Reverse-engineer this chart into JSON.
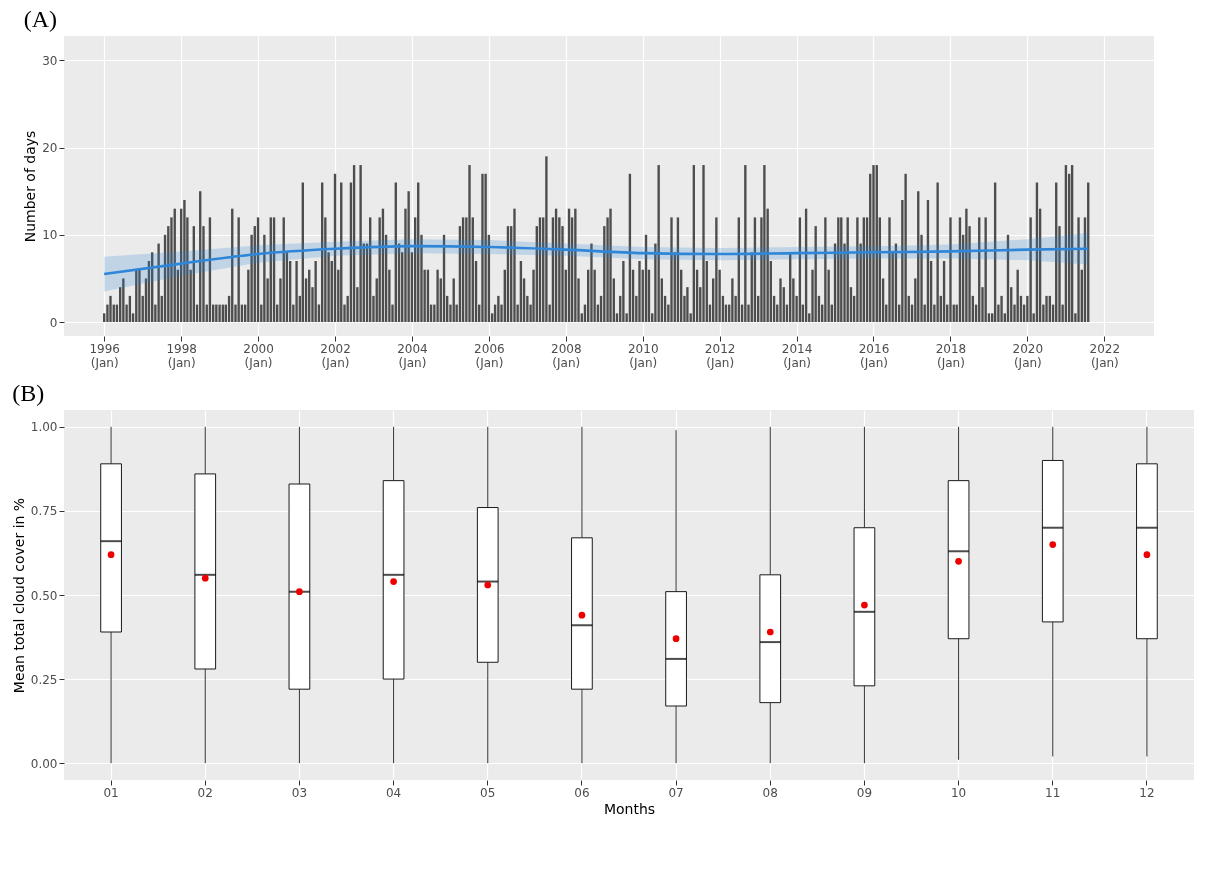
{
  "chart_data": [
    {
      "type": "bar",
      "title": "(A)",
      "ylabel": "Number of days",
      "x": [
        "1996-01",
        "1996-02",
        "1996-03",
        "1996-04",
        "1996-05",
        "1996-06",
        "1996-07",
        "1996-08",
        "1996-09",
        "1996-10",
        "1996-11",
        "1996-12",
        "1997-01",
        "1997-02",
        "1997-03",
        "1997-04",
        "1997-05",
        "1997-06",
        "1997-07",
        "1997-08",
        "1997-09",
        "1997-10",
        "1997-11",
        "1997-12",
        "1998-01",
        "1998-02",
        "1998-03",
        "1998-04",
        "1998-05",
        "1998-06",
        "1998-07",
        "1998-08",
        "1998-09",
        "1998-10",
        "1998-11",
        "1998-12",
        "1999-01",
        "1999-02",
        "1999-03",
        "1999-04",
        "1999-05",
        "1999-06",
        "1999-07",
        "1999-08",
        "1999-09",
        "1999-10",
        "1999-11",
        "1999-12",
        "2000-01",
        "2000-02",
        "2000-03",
        "2000-04",
        "2000-05",
        "2000-06",
        "2000-07",
        "2000-08",
        "2000-09",
        "2000-10",
        "2000-11",
        "2000-12",
        "2001-01",
        "2001-02",
        "2001-03",
        "2001-04",
        "2001-05",
        "2001-06",
        "2001-07",
        "2001-08",
        "2001-09",
        "2001-10",
        "2001-11",
        "2001-12",
        "2002-01",
        "2002-02",
        "2002-03",
        "2002-04",
        "2002-05",
        "2002-06",
        "2002-07",
        "2002-08",
        "2002-09",
        "2002-10",
        "2002-11",
        "2002-12",
        "2003-01",
        "2003-02",
        "2003-03",
        "2003-04",
        "2003-05",
        "2003-06",
        "2003-07",
        "2003-08",
        "2003-09",
        "2003-10",
        "2003-11",
        "2003-12",
        "2004-01",
        "2004-02",
        "2004-03",
        "2004-04",
        "2004-05",
        "2004-06",
        "2004-07",
        "2004-08",
        "2004-09",
        "2004-10",
        "2004-11",
        "2004-12",
        "2005-01",
        "2005-02",
        "2005-03",
        "2005-04",
        "2005-05",
        "2005-06",
        "2005-07",
        "2005-08",
        "2005-09",
        "2005-10",
        "2005-11",
        "2005-12",
        "2006-01",
        "2006-02",
        "2006-03",
        "2006-04",
        "2006-05",
        "2006-06",
        "2006-07",
        "2006-08",
        "2006-09",
        "2006-10",
        "2006-11",
        "2006-12",
        "2007-01",
        "2007-02",
        "2007-03",
        "2007-04",
        "2007-05",
        "2007-06",
        "2007-07",
        "2007-08",
        "2007-09",
        "2007-10",
        "2007-11",
        "2007-12",
        "2008-01",
        "2008-02",
        "2008-03",
        "2008-04",
        "2008-05",
        "2008-06",
        "2008-07",
        "2008-08",
        "2008-09",
        "2008-10",
        "2008-11",
        "2008-12",
        "2009-01",
        "2009-02",
        "2009-03",
        "2009-04",
        "2009-05",
        "2009-06",
        "2009-07",
        "2009-08",
        "2009-09",
        "2009-10",
        "2009-11",
        "2009-12",
        "2010-01",
        "2010-02",
        "2010-03",
        "2010-04",
        "2010-05",
        "2010-06",
        "2010-07",
        "2010-08",
        "2010-09",
        "2010-10",
        "2010-11",
        "2010-12",
        "2011-01",
        "2011-02",
        "2011-03",
        "2011-04",
        "2011-05",
        "2011-06",
        "2011-07",
        "2011-08",
        "2011-09",
        "2011-10",
        "2011-11",
        "2011-12",
        "2012-01",
        "2012-02",
        "2012-03",
        "2012-04",
        "2012-05",
        "2012-06",
        "2012-07",
        "2012-08",
        "2012-09",
        "2012-10",
        "2012-11",
        "2012-12",
        "2013-01",
        "2013-02",
        "2013-03",
        "2013-04",
        "2013-05",
        "2013-06",
        "2013-07",
        "2013-08",
        "2013-09",
        "2013-10",
        "2013-11",
        "2013-12",
        "2014-01",
        "2014-02",
        "2014-03",
        "2014-04",
        "2014-05",
        "2014-06",
        "2014-07",
        "2014-08",
        "2014-09",
        "2014-10",
        "2014-11",
        "2014-12",
        "2015-01",
        "2015-02",
        "2015-03",
        "2015-04",
        "2015-05",
        "2015-06",
        "2015-07",
        "2015-08",
        "2015-09",
        "2015-10",
        "2015-11",
        "2015-12",
        "2016-01",
        "2016-02",
        "2016-03",
        "2016-04",
        "2016-05",
        "2016-06",
        "2016-07",
        "2016-08",
        "2016-09",
        "2016-10",
        "2016-11",
        "2016-12",
        "2017-01",
        "2017-02",
        "2017-03",
        "2017-04",
        "2017-05",
        "2017-06",
        "2017-07",
        "2017-08",
        "2017-09",
        "2017-10",
        "2017-11",
        "2017-12",
        "2018-01",
        "2018-02",
        "2018-03",
        "2018-04",
        "2018-05",
        "2018-06",
        "2018-07",
        "2018-08",
        "2018-09",
        "2018-10",
        "2018-11",
        "2018-12",
        "2019-01",
        "2019-02",
        "2019-03",
        "2019-04",
        "2019-05",
        "2019-06",
        "2019-07",
        "2019-08",
        "2019-09",
        "2019-10",
        "2019-11",
        "2019-12",
        "2020-01",
        "2020-02",
        "2020-03",
        "2020-04",
        "2020-05",
        "2020-06",
        "2020-07",
        "2020-08",
        "2020-09",
        "2020-10",
        "2020-11",
        "2020-12",
        "2021-01",
        "2021-02",
        "2021-03",
        "2021-04",
        "2021-05",
        "2021-06",
        "2021-07",
        "2021-08"
      ],
      "series": [
        {
          "type": "bar",
          "color": "#4d4d4d",
          "values": [
            1,
            2,
            3,
            2,
            2,
            4,
            5,
            2,
            3,
            1,
            6,
            6,
            3,
            5,
            7,
            8,
            2,
            9,
            3,
            10,
            11,
            12,
            13,
            6,
            13,
            14,
            12,
            6,
            11,
            2,
            15,
            11,
            2,
            12,
            2,
            2,
            2,
            2,
            2,
            3,
            13,
            2,
            12,
            2,
            2,
            6,
            10,
            11,
            12,
            2,
            10,
            5,
            12,
            12,
            2,
            5,
            12,
            8,
            7,
            2,
            7,
            3,
            16,
            5,
            6,
            4,
            7,
            2,
            16,
            12,
            8,
            7,
            17,
            6,
            16,
            2,
            3,
            16,
            18,
            4,
            18,
            9,
            9,
            12,
            3,
            5,
            12,
            13,
            10,
            6,
            2,
            16,
            9,
            8,
            13,
            15,
            8,
            12,
            16,
            10,
            6,
            6,
            2,
            2,
            6,
            5,
            10,
            3,
            2,
            5,
            2,
            11,
            12,
            12,
            18,
            12,
            7,
            2,
            17,
            17,
            10,
            1,
            2,
            3,
            2,
            6,
            11,
            11,
            13,
            2,
            7,
            5,
            3,
            2,
            6,
            11,
            12,
            12,
            19,
            2,
            12,
            13,
            12,
            11,
            6,
            13,
            12,
            13,
            5,
            1,
            2,
            6,
            9,
            6,
            2,
            3,
            11,
            12,
            13,
            5,
            1,
            3,
            7,
            1,
            17,
            6,
            3,
            7,
            6,
            10,
            6,
            1,
            9,
            18,
            5,
            3,
            2,
            12,
            8,
            12,
            6,
            3,
            4,
            1,
            18,
            6,
            4,
            18,
            7,
            2,
            5,
            12,
            6,
            3,
            2,
            2,
            5,
            3,
            12,
            2,
            18,
            2,
            8,
            12,
            3,
            12,
            18,
            13,
            7,
            3,
            2,
            5,
            4,
            2,
            8,
            5,
            3,
            12,
            2,
            13,
            1,
            6,
            11,
            3,
            2,
            12,
            6,
            2,
            9,
            12,
            12,
            9,
            12,
            4,
            3,
            12,
            9,
            12,
            12,
            17,
            18,
            18,
            12,
            5,
            2,
            12,
            8,
            9,
            2,
            14,
            17,
            3,
            2,
            5,
            15,
            10,
            2,
            14,
            7,
            2,
            16,
            3,
            7,
            2,
            12,
            2,
            2,
            12,
            10,
            13,
            11,
            3,
            2,
            12,
            4,
            12,
            1,
            1,
            16,
            2,
            3,
            1,
            10,
            4,
            2,
            6,
            3,
            2,
            3,
            12,
            1,
            16,
            13,
            2,
            3,
            3,
            2,
            16,
            11,
            2,
            18,
            17,
            18,
            1,
            12,
            6,
            12,
            16
          ]
        },
        {
          "type": "line",
          "color": "#2f86d8",
          "x": [
            "1996-01",
            "1998-01",
            "2000-01",
            "2002-01",
            "2004-01",
            "2006-01",
            "2008-01",
            "2010-01",
            "2012-01",
            "2014-01",
            "2016-01",
            "2018-01",
            "2020-01",
            "2021-08"
          ],
          "values": [
            5.5,
            6.7,
            7.8,
            8.4,
            8.7,
            8.6,
            8.3,
            7.9,
            7.8,
            7.9,
            8.0,
            8.1,
            8.3,
            8.4
          ],
          "lower": [
            3.5,
            5.3,
            6.8,
            7.6,
            7.9,
            7.8,
            7.6,
            7.2,
            7.1,
            7.2,
            7.3,
            7.3,
            7.1,
            6.6
          ],
          "upper": [
            7.5,
            8.1,
            8.8,
            9.2,
            9.5,
            9.4,
            9.0,
            8.6,
            8.5,
            8.6,
            8.7,
            8.9,
            9.5,
            10.2
          ]
        }
      ],
      "xlim": [
        "1995-02",
        "2023-03"
      ],
      "ylim": [
        -1.6,
        32.8
      ],
      "xticks": [
        {
          "value": "1996-01",
          "label": "1996\n(Jan)"
        },
        {
          "value": "1998-01",
          "label": "1998\n(Jan)"
        },
        {
          "value": "2000-01",
          "label": "2000\n(Jan)"
        },
        {
          "value": "2002-01",
          "label": "2002\n(Jan)"
        },
        {
          "value": "2004-01",
          "label": "2004\n(Jan)"
        },
        {
          "value": "2006-01",
          "label": "2006\n(Jan)"
        },
        {
          "value": "2008-01",
          "label": "2008\n(Jan)"
        },
        {
          "value": "2010-01",
          "label": "2010\n(Jan)"
        },
        {
          "value": "2012-01",
          "label": "2012\n(Jan)"
        },
        {
          "value": "2014-01",
          "label": "2014\n(Jan)"
        },
        {
          "value": "2016-01",
          "label": "2016\n(Jan)"
        },
        {
          "value": "2018-01",
          "label": "2018\n(Jan)"
        },
        {
          "value": "2020-01",
          "label": "2020\n(Jan)"
        },
        {
          "value": "2022-01",
          "label": "2022\n(Jan)"
        }
      ],
      "yticks": [
        0,
        10,
        20,
        30
      ],
      "grid": true
    },
    {
      "type": "box",
      "title": "(B)",
      "xlabel": "Months",
      "ylabel": "Mean total cloud cover in %",
      "categories": [
        "01",
        "02",
        "03",
        "04",
        "05",
        "06",
        "07",
        "08",
        "09",
        "10",
        "11",
        "12"
      ],
      "boxes": [
        {
          "low": 0,
          "q1": 0.39,
          "median": 0.66,
          "q3": 0.89,
          "high": 1,
          "mean": 0.62
        },
        {
          "low": 0,
          "q1": 0.28,
          "median": 0.56,
          "q3": 0.86,
          "high": 1,
          "mean": 0.55
        },
        {
          "low": 0,
          "q1": 0.22,
          "median": 0.51,
          "q3": 0.83,
          "high": 1,
          "mean": 0.51
        },
        {
          "low": 0,
          "q1": 0.25,
          "median": 0.56,
          "q3": 0.84,
          "high": 1,
          "mean": 0.54
        },
        {
          "low": 0,
          "q1": 0.3,
          "median": 0.54,
          "q3": 0.76,
          "high": 1,
          "mean": 0.53
        },
        {
          "low": 0,
          "q1": 0.22,
          "median": 0.41,
          "q3": 0.67,
          "high": 1,
          "mean": 0.44
        },
        {
          "low": 0,
          "q1": 0.17,
          "median": 0.31,
          "q3": 0.51,
          "high": 0.99,
          "mean": 0.37
        },
        {
          "low": 0,
          "q1": 0.18,
          "median": 0.36,
          "q3": 0.56,
          "high": 1,
          "mean": 0.39
        },
        {
          "low": 0,
          "q1": 0.23,
          "median": 0.45,
          "q3": 0.7,
          "high": 1,
          "mean": 0.47
        },
        {
          "low": 0.01,
          "q1": 0.37,
          "median": 0.63,
          "q3": 0.84,
          "high": 1,
          "mean": 0.6
        },
        {
          "low": 0.02,
          "q1": 0.42,
          "median": 0.7,
          "q3": 0.9,
          "high": 1,
          "mean": 0.65
        },
        {
          "low": 0.02,
          "q1": 0.37,
          "median": 0.7,
          "q3": 0.89,
          "high": 1,
          "mean": 0.62
        }
      ],
      "ylim": [
        -0.05,
        1.05
      ],
      "yticks": [
        {
          "value": 0,
          "label": "0.00"
        },
        {
          "value": 0.25,
          "label": "0.25"
        },
        {
          "value": 0.5,
          "label": "0.50"
        },
        {
          "value": 0.75,
          "label": "0.75"
        },
        {
          "value": 1,
          "label": "1.00"
        }
      ],
      "grid": true
    }
  ]
}
